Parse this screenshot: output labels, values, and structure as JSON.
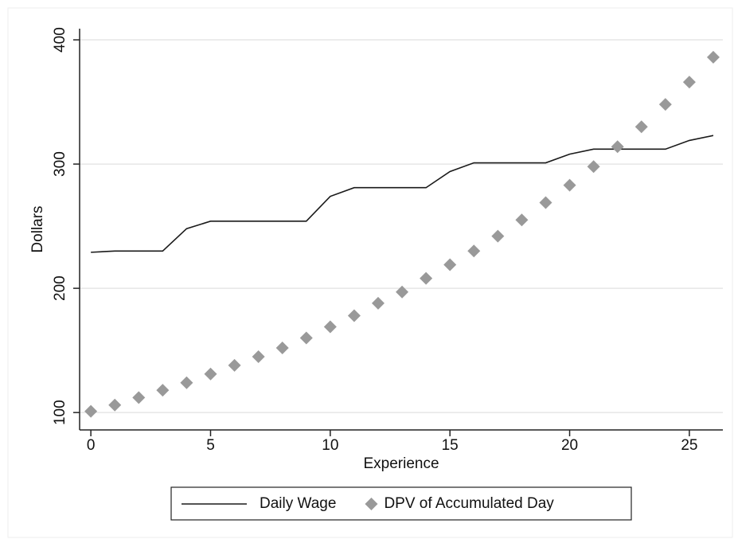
{
  "chart_data": {
    "type": "line",
    "x_label": "Experience",
    "y_label": "Dollars",
    "x": [
      0,
      1,
      2,
      3,
      4,
      5,
      6,
      7,
      8,
      9,
      10,
      11,
      12,
      13,
      14,
      15,
      16,
      17,
      18,
      19,
      20,
      21,
      22,
      23,
      24,
      25,
      26
    ],
    "series": [
      {
        "name": "Daily Wage",
        "type": "line",
        "color": "#1a1a1a",
        "values": [
          229,
          230,
          230,
          230,
          248,
          254,
          254,
          254,
          254,
          254,
          274,
          281,
          281,
          281,
          281,
          294,
          301,
          301,
          301,
          301,
          308,
          312,
          312,
          312,
          312,
          319,
          323
        ]
      },
      {
        "name": "DPV of Accumulated Day",
        "type": "scatter",
        "marker": "diamond",
        "color": "#999999",
        "values": [
          101,
          106,
          112,
          118,
          124,
          131,
          138,
          145,
          152,
          160,
          169,
          178,
          188,
          197,
          208,
          219,
          230,
          242,
          255,
          269,
          283,
          298,
          314,
          330,
          348,
          366,
          386
        ]
      }
    ],
    "xlim": [
      -0.47,
      26.4
    ],
    "ylim": [
      86,
      409
    ],
    "xticks": [
      0,
      5,
      10,
      15,
      20,
      25
    ],
    "yticks": [
      100,
      200,
      300,
      400
    ],
    "grid": true,
    "legend": "bottom"
  }
}
